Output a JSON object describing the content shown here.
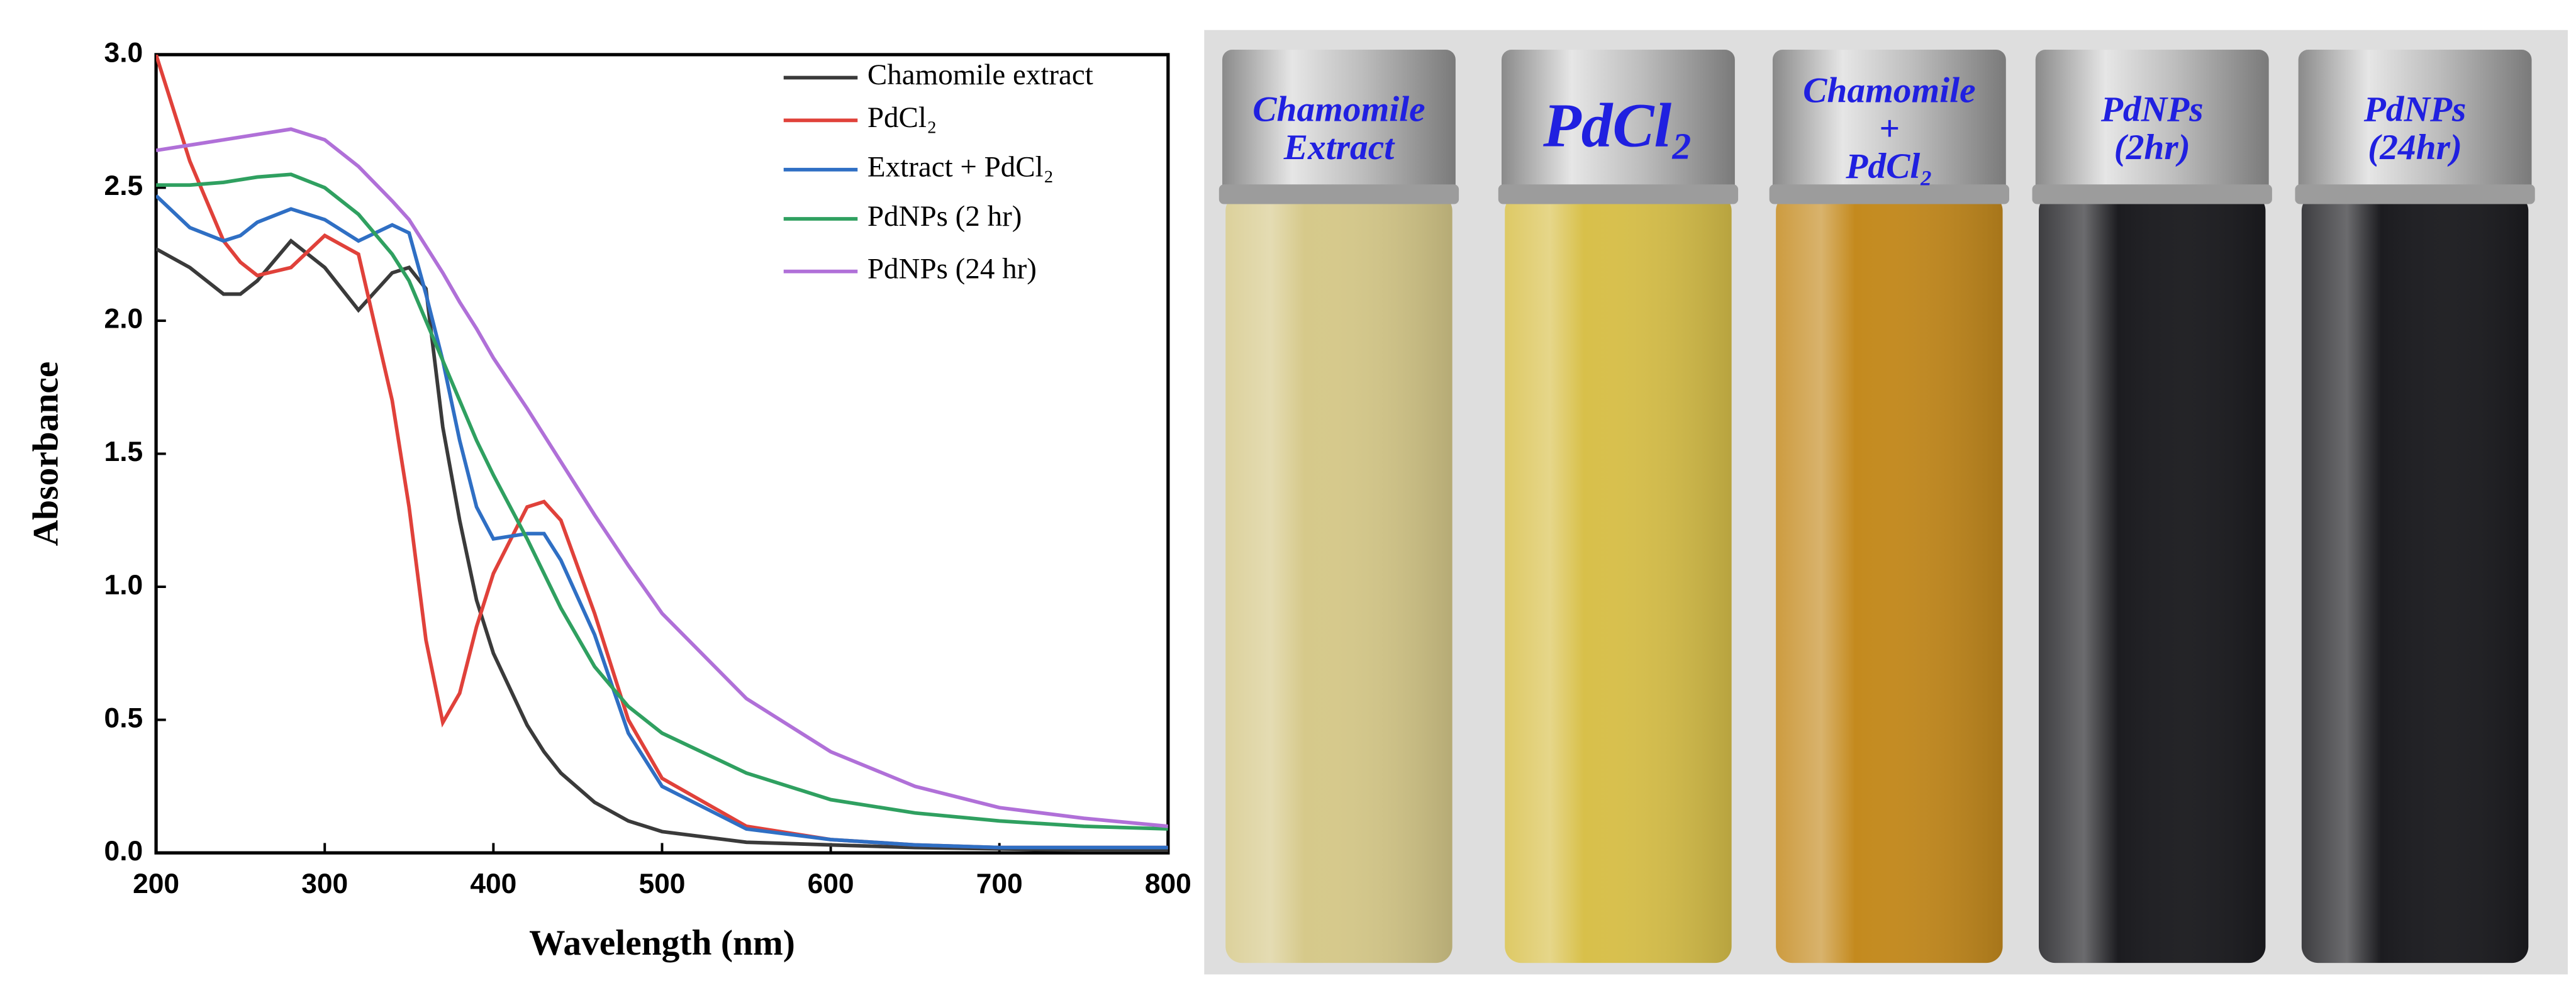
{
  "chart_data": {
    "type": "line",
    "x_label": "Wavelength (nm)",
    "y_label": "Absorbance",
    "x": [
      200,
      220,
      240,
      250,
      260,
      280,
      300,
      320,
      340,
      350,
      360,
      370,
      380,
      390,
      400,
      420,
      430,
      440,
      460,
      480,
      500,
      550,
      600,
      650,
      700,
      750,
      800
    ],
    "xlim": [
      200,
      800
    ],
    "xticks": [
      200,
      300,
      400,
      500,
      600,
      700,
      800
    ],
    "ylim": [
      0,
      3.0
    ],
    "yticks": [
      {
        "value": 0,
        "label": "0.0"
      },
      {
        "value": 0.5,
        "label": "0.5"
      },
      {
        "value": 1,
        "label": "1.0"
      },
      {
        "value": 1.5,
        "label": "1.5"
      },
      {
        "value": 2,
        "label": "2.0"
      },
      {
        "value": 2.5,
        "label": "2.5"
      },
      {
        "value": 3,
        "label": "3.0"
      }
    ],
    "legend": "top-right",
    "series": [
      {
        "name": "Chamomile extract",
        "color": "#3a3a3a",
        "values": [
          2.27,
          2.2,
          2.1,
          2.1,
          2.15,
          2.3,
          2.2,
          2.04,
          2.18,
          2.2,
          2.12,
          1.6,
          1.25,
          0.95,
          0.75,
          0.48,
          0.38,
          0.3,
          0.19,
          0.12,
          0.08,
          0.04,
          0.03,
          0.02,
          0.015,
          0.01,
          0.01
        ]
      },
      {
        "name": "PdCl₂",
        "color": "#e0413a",
        "values": [
          3.0,
          2.6,
          2.3,
          2.22,
          2.17,
          2.2,
          2.32,
          2.25,
          1.7,
          1.3,
          0.8,
          0.49,
          0.6,
          0.85,
          1.05,
          1.3,
          1.32,
          1.25,
          0.9,
          0.5,
          0.28,
          0.1,
          0.05,
          0.03,
          0.02,
          0.02,
          0.02
        ]
      },
      {
        "name": "Extract + PdCl₂",
        "color": "#2f6fc4",
        "values": [
          2.47,
          2.35,
          2.3,
          2.32,
          2.37,
          2.42,
          2.38,
          2.3,
          2.36,
          2.33,
          2.1,
          1.85,
          1.55,
          1.3,
          1.18,
          1.2,
          1.2,
          1.1,
          0.82,
          0.45,
          0.25,
          0.09,
          0.05,
          0.03,
          0.02,
          0.02,
          0.02
        ]
      },
      {
        "name": "PdNPs (2 hr)",
        "color": "#2fa060",
        "values": [
          2.51,
          2.51,
          2.52,
          2.53,
          2.54,
          2.55,
          2.5,
          2.4,
          2.25,
          2.15,
          2.0,
          1.85,
          1.7,
          1.55,
          1.42,
          1.18,
          1.05,
          0.92,
          0.7,
          0.55,
          0.45,
          0.3,
          0.2,
          0.15,
          0.12,
          0.1,
          0.09
        ]
      },
      {
        "name": "PdNPs (24 hr)",
        "color": "#b070d8",
        "values": [
          2.64,
          2.66,
          2.68,
          2.69,
          2.7,
          2.72,
          2.68,
          2.58,
          2.45,
          2.38,
          2.28,
          2.18,
          2.07,
          1.97,
          1.86,
          1.67,
          1.57,
          1.47,
          1.27,
          1.08,
          0.9,
          0.58,
          0.38,
          0.25,
          0.17,
          0.13,
          0.1
        ]
      }
    ]
  },
  "photo": {
    "vials": [
      {
        "label_lines": [
          "Chamomile",
          "Extract"
        ],
        "liquid_color": "#d6c98a"
      },
      {
        "label_lines": [
          "PdCl₂"
        ],
        "liquid_color": "#d8c04a"
      },
      {
        "label_lines": [
          "Chamomile",
          "+",
          "PdCl₂"
        ],
        "liquid_color": "#c48a1e"
      },
      {
        "label_lines": [
          "PdNPs",
          "(2hr)"
        ],
        "liquid_color": "#1c1c20"
      },
      {
        "label_lines": [
          "PdNPs",
          "(24hr)"
        ],
        "liquid_color": "#1c1c20"
      }
    ]
  }
}
